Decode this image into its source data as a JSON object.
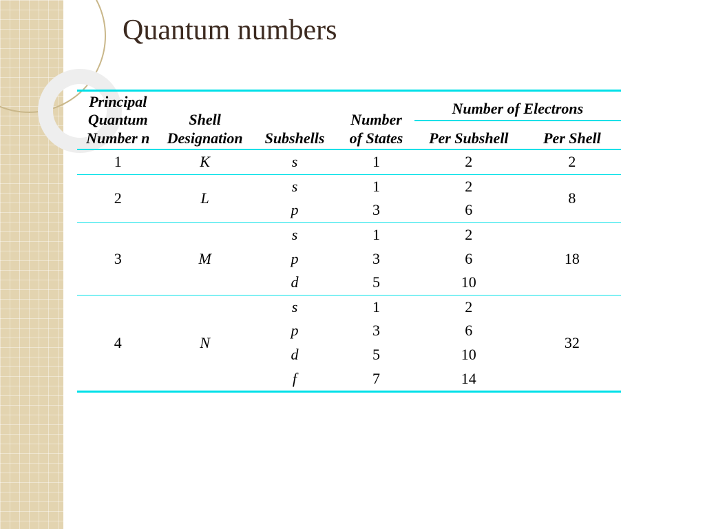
{
  "title": "Quantum numbers",
  "colors": {
    "rule": "#00e0e8",
    "title": "#3c2a20",
    "strip_bg": "#e3d4b0",
    "ring_big": "#c9b78a",
    "ring_small": "#eeeeee",
    "text": "#000000",
    "page_bg": "#ffffff"
  },
  "typography": {
    "title_fontsize_pt": 32,
    "header_fontsize_pt": 17,
    "cell_fontsize_pt": 17,
    "header_italic": true,
    "header_bold": true,
    "body_font": "Times New Roman"
  },
  "table": {
    "columns": {
      "c1": {
        "lines": [
          "Principal",
          "Quantum",
          "Number n"
        ],
        "width_pct": 15
      },
      "c2": {
        "lines": [
          "Shell",
          "Designation"
        ],
        "width_pct": 17
      },
      "c3": {
        "lines": [
          "Subshells"
        ],
        "width_pct": 16
      },
      "c4": {
        "lines": [
          "Number",
          "of States"
        ],
        "width_pct": 14
      },
      "group": {
        "label": "Number of Electrons"
      },
      "c5": {
        "lines": [
          "Per Subshell"
        ],
        "width_pct": 20
      },
      "c6": {
        "lines": [
          "Per Shell"
        ],
        "width_pct": 18
      }
    },
    "groups": [
      {
        "n": "1",
        "shell": "K",
        "per_shell": "2",
        "rows": [
          {
            "subshell": "s",
            "states": "1",
            "per_subshell": "2"
          }
        ]
      },
      {
        "n": "2",
        "shell": "L",
        "per_shell": "8",
        "rows": [
          {
            "subshell": "s",
            "states": "1",
            "per_subshell": "2"
          },
          {
            "subshell": "p",
            "states": "3",
            "per_subshell": "6"
          }
        ]
      },
      {
        "n": "3",
        "shell": "M",
        "per_shell": "18",
        "rows": [
          {
            "subshell": "s",
            "states": "1",
            "per_subshell": "2"
          },
          {
            "subshell": "p",
            "states": "3",
            "per_subshell": "6"
          },
          {
            "subshell": "d",
            "states": "5",
            "per_subshell": "10"
          }
        ]
      },
      {
        "n": "4",
        "shell": "N",
        "per_shell": "32",
        "rows": [
          {
            "subshell": "s",
            "states": "1",
            "per_subshell": "2"
          },
          {
            "subshell": "p",
            "states": "3",
            "per_subshell": "6"
          },
          {
            "subshell": "d",
            "states": "5",
            "per_subshell": "10"
          },
          {
            "subshell": "f",
            "states": "7",
            "per_subshell": "14"
          }
        ]
      }
    ]
  }
}
